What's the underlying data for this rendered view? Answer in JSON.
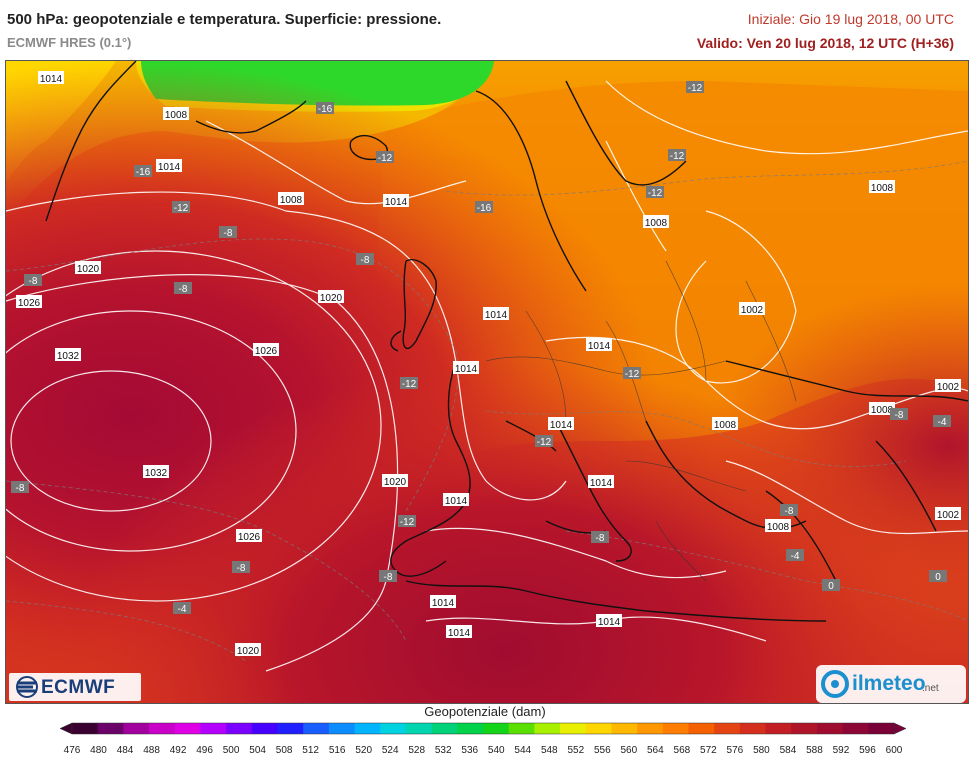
{
  "header": {
    "title": "500 hPa: geopotenziale e temperatura. Superficie: pressione.",
    "model": "ECMWF HRES (0.1°)",
    "initial": "Iniziale: Gio 19 lug 2018, 00 UTC",
    "valid": "Valido: Ven 20 lug 2018, 12 UTC (H+36)"
  },
  "isobar_labels": [
    "1014",
    "1008",
    "1014",
    "1008",
    "1014",
    "1020",
    "1026",
    "1032",
    "1020",
    "1026",
    "1032",
    "1026",
    "1020",
    "1020",
    "1014",
    "1014",
    "1014",
    "1014",
    "1014",
    "1014",
    "1014",
    "1014",
    "1014",
    "1008",
    "1008",
    "1002",
    "1008",
    "1008",
    "1002",
    "1002",
    "1008"
  ],
  "temperature_labels": [
    "-16",
    "-12",
    "-16",
    "-12",
    "-16",
    "-8",
    "-8",
    "-8",
    "-8",
    "-12",
    "-12",
    "-12",
    "-12",
    "-12",
    "-12",
    "-8",
    "-8",
    "-8",
    "-8",
    "-4",
    "-4",
    "0",
    "0",
    "-4",
    "-8",
    "-12",
    "-8"
  ],
  "logos": {
    "left": "ECMWF",
    "right": "ilmeteo",
    "right_suffix": ".net"
  },
  "legend": {
    "title": "Geopotenziale (dam)",
    "ticks": [
      "476",
      "480",
      "484",
      "488",
      "492",
      "496",
      "500",
      "504",
      "508",
      "512",
      "516",
      "520",
      "524",
      "528",
      "532",
      "536",
      "540",
      "544",
      "548",
      "552",
      "556",
      "560",
      "564",
      "568",
      "572",
      "576",
      "580",
      "584",
      "588",
      "592",
      "596",
      "600"
    ],
    "colors": [
      "#3a0030",
      "#6a0068",
      "#a1009f",
      "#c800c8",
      "#e000e6",
      "#b300ff",
      "#7a00ff",
      "#4600ff",
      "#1f1fff",
      "#1a5dff",
      "#0d8cff",
      "#00b4ff",
      "#00d2e0",
      "#00d5b0",
      "#00d27a",
      "#00d24a",
      "#14d41a",
      "#5ae000",
      "#a8f000",
      "#e8ef00",
      "#ffd600",
      "#ffb800",
      "#ff9800",
      "#ff7d00",
      "#f56000",
      "#e44414",
      "#d62e1c",
      "#c21e24",
      "#b01428",
      "#a00c30",
      "#8c0636",
      "#7a0038"
    ]
  }
}
